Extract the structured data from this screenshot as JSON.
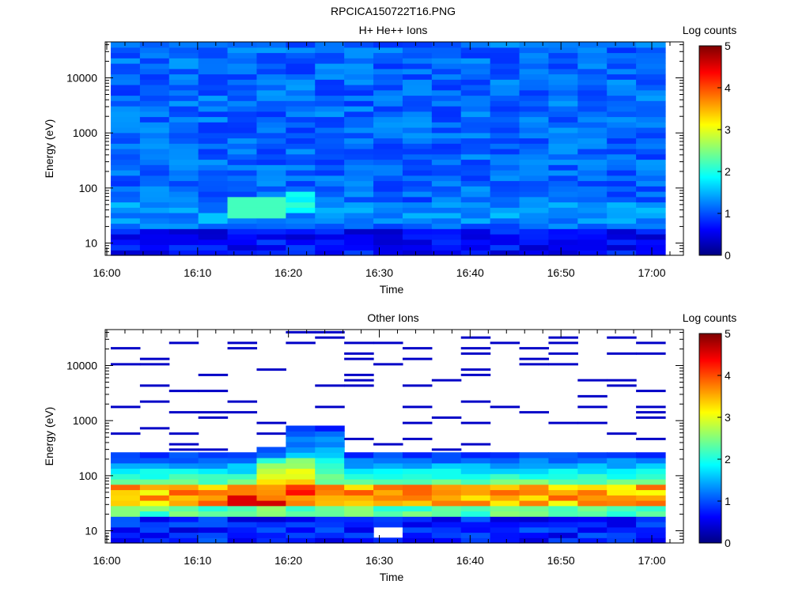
{
  "figure": {
    "filename": "RPCICA150722T16.PNG"
  },
  "chart_data": [
    {
      "type": "heatmap",
      "title": "H+ He++ Ions",
      "xlabel": "Time",
      "ylabel": "Energy (eV)",
      "x_range": [
        "16:00",
        "17:03"
      ],
      "x_ticks": [
        "16:00",
        "16:10",
        "16:20",
        "16:30",
        "16:40",
        "16:50",
        "17:00"
      ],
      "y_scale": "log",
      "ylim": [
        6,
        45000
      ],
      "y_ticks": [
        "10",
        "100",
        "1000",
        "10000"
      ],
      "colorbar": {
        "label": "Log counts",
        "range": [
          0,
          5
        ],
        "ticks": [
          "0",
          "1",
          "2",
          "3",
          "4",
          "5"
        ]
      },
      "notes": "Mostly 0.7-1.5 log counts everywhere; enhanced ~2-2.5 near 40-90 eV at 16:14-16:23."
    },
    {
      "type": "heatmap",
      "title": "Other Ions",
      "xlabel": "Time",
      "ylabel": "Energy (eV)",
      "x_range": [
        "16:00",
        "17:03"
      ],
      "x_ticks": [
        "16:00",
        "16:10",
        "16:20",
        "16:30",
        "16:40",
        "16:50",
        "17:00"
      ],
      "y_scale": "log",
      "ylim": [
        6,
        45000
      ],
      "y_ticks": [
        "10",
        "100",
        "1000",
        "10000"
      ],
      "colorbar": {
        "label": "Log counts",
        "range": [
          0,
          5
        ],
        "ticks": [
          "0",
          "1",
          "2",
          "3",
          "4",
          "5"
        ]
      },
      "notes": "Peak ~3.5-4.5 log counts at 30-60 eV; sparse low-count lines above ~300 eV; enhanced up to ~800 eV at 16:20-16:27."
    }
  ]
}
